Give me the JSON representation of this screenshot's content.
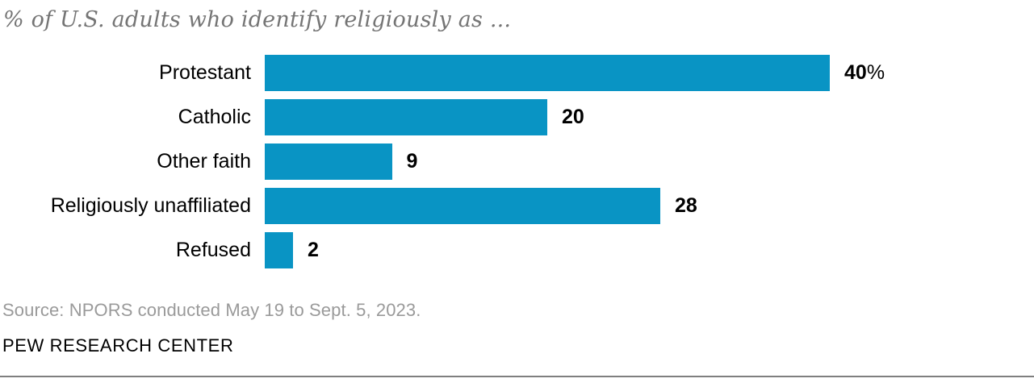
{
  "chart": {
    "subtitle": "% of U.S. adults who identify religiously as ...",
    "source": "Source: NPORS conducted May 19 to Sept. 5, 2023.",
    "branding": "PEW RESEARCH CENTER"
  },
  "chart_data": {
    "type": "bar",
    "orientation": "horizontal",
    "title": "% of U.S. adults who identify religiously as ...",
    "categories": [
      "Protestant",
      "Catholic",
      "Other faith",
      "Religiously unaffiliated",
      "Refused"
    ],
    "values": [
      40,
      20,
      9,
      28,
      2
    ],
    "value_labels": [
      "40",
      "20",
      "9",
      "28",
      "2"
    ],
    "value_suffixes": [
      "%",
      "",
      "",
      "",
      ""
    ],
    "xlabel": "",
    "ylabel": "",
    "xlim": [
      0,
      40
    ],
    "bar_color": "#0994c4",
    "label_color": "#000000",
    "subtitle_color": "#757575",
    "source_color": "#9a9a9a",
    "grid": false,
    "legend": false,
    "data_labels_position": "end-of-bar"
  }
}
